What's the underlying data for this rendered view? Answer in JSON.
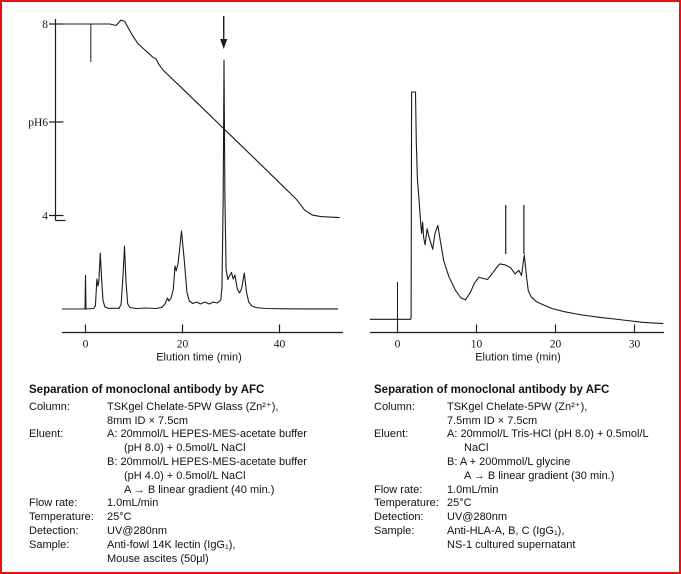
{
  "frame": {
    "border_color": "#e81010",
    "background": "#ffffff",
    "ink_color": "#1c1c1c"
  },
  "chart_data": [
    {
      "type": "line",
      "id": "left-chromatogram",
      "title": "",
      "xlabel": "Elution time (min)",
      "x_ticks": [
        0,
        20,
        40
      ],
      "x_range": [
        -4.8,
        52.5
      ],
      "grid": false,
      "ph_axis": {
        "range": [
          4,
          8
        ],
        "tick_labels": [
          {
            "ph": 8,
            "label": "8"
          },
          {
            "ph": 6,
            "label": "pH6"
          },
          {
            "ph": 4,
            "label": "4"
          }
        ]
      },
      "series": [
        {
          "name": "uv-absorbance",
          "unit": "relative(0-100)",
          "points": [
            [
              -4.8,
              0.2
            ],
            [
              -0.1,
              0.2
            ],
            [
              0,
              13.6
            ],
            [
              0.1,
              0.2
            ],
            [
              1.7,
              0.4
            ],
            [
              2.05,
              1.5
            ],
            [
              2.35,
              12.2
            ],
            [
              2.55,
              9.4
            ],
            [
              2.75,
              11
            ],
            [
              3.05,
              22.6
            ],
            [
              3.3,
              13
            ],
            [
              3.6,
              3.6
            ],
            [
              4,
              1
            ],
            [
              4.7,
              0.5
            ],
            [
              6.9,
              0.5
            ],
            [
              7.35,
              2
            ],
            [
              7.75,
              14
            ],
            [
              8.05,
              25.4
            ],
            [
              8.35,
              11
            ],
            [
              8.7,
              2.2
            ],
            [
              9.15,
              0.8
            ],
            [
              10.5,
              0.4
            ],
            [
              12.5,
              0.6
            ],
            [
              14.5,
              0.4
            ],
            [
              15.8,
              0.9
            ],
            [
              16.4,
              2.2
            ],
            [
              16.9,
              4.6
            ],
            [
              17.2,
              3.4
            ],
            [
              17.6,
              4.4
            ],
            [
              18.1,
              8
            ],
            [
              18.45,
              17.4
            ],
            [
              18.7,
              15.5
            ],
            [
              19.1,
              18.5
            ],
            [
              19.8,
              31.4
            ],
            [
              20.35,
              20
            ],
            [
              20.9,
              7
            ],
            [
              21.4,
              3.4
            ],
            [
              22.1,
              2.4
            ],
            [
              22.9,
              3
            ],
            [
              23.7,
              2.2
            ],
            [
              24.6,
              3
            ],
            [
              25.5,
              2.2
            ],
            [
              26.4,
              3
            ],
            [
              27.2,
              2.6
            ],
            [
              27.9,
              3.8
            ],
            [
              28.15,
              9
            ],
            [
              28.4,
              45
            ],
            [
              28.55,
              99.8
            ],
            [
              28.75,
              45
            ],
            [
              29,
              16
            ],
            [
              29.35,
              12
            ],
            [
              29.7,
              13.4
            ],
            [
              30.1,
              14.8
            ],
            [
              30.45,
              12.2
            ],
            [
              30.8,
              13.8
            ],
            [
              31.3,
              8.2
            ],
            [
              31.75,
              6.6
            ],
            [
              32.2,
              8.5
            ],
            [
              32.75,
              14.6
            ],
            [
              33.2,
              7
            ],
            [
              33.65,
              3
            ],
            [
              34.3,
              1.4
            ],
            [
              35.2,
              0.8
            ],
            [
              37,
              0.4
            ],
            [
              41,
              0.3
            ],
            [
              46,
              0.25
            ],
            [
              52,
              0.25
            ]
          ]
        },
        {
          "name": "ph-gradient",
          "unit": "pH",
          "points": [
            [
              -4.8,
              8
            ],
            [
              3.5,
              8
            ],
            [
              5,
              8
            ],
            [
              6.3,
              7.97
            ],
            [
              7.3,
              8.08
            ],
            [
              8.1,
              8.05
            ],
            [
              8.8,
              7.92
            ],
            [
              9.6,
              7.78
            ],
            [
              10.8,
              7.6
            ],
            [
              13.8,
              7.33
            ],
            [
              14.6,
              7.28
            ],
            [
              15.1,
              7.18
            ],
            [
              16,
              7.06
            ],
            [
              20,
              6.68
            ],
            [
              25,
              6.2
            ],
            [
              30,
              5.72
            ],
            [
              35,
              5.24
            ],
            [
              40,
              4.76
            ],
            [
              43.5,
              4.42
            ],
            [
              45.2,
              4.2
            ],
            [
              46.8,
              4.1
            ],
            [
              48.5,
              4.07
            ],
            [
              52.3,
              4.05
            ]
          ]
        }
      ],
      "annotations": {
        "arrow_t": 28.5,
        "injection_mark_t": 1.1
      }
    },
    {
      "type": "line",
      "id": "right-chromatogram",
      "title": "",
      "xlabel": "Elution time (min)",
      "x_ticks": [
        0,
        10,
        20,
        30
      ],
      "x_range": [
        -3.5,
        33.7
      ],
      "grid": false,
      "series": [
        {
          "name": "uv-absorbance",
          "unit": "relative(0-100)",
          "points": [
            [
              -3.45,
              0.3
            ],
            [
              1.65,
              0.3
            ],
            [
              1.72,
              0.8
            ],
            [
              1.78,
              100
            ],
            [
              2.28,
              100
            ],
            [
              2.38,
              78
            ],
            [
              2.52,
              62
            ],
            [
              2.72,
              53
            ],
            [
              2.92,
              43
            ],
            [
              3.05,
              38
            ],
            [
              3.18,
              43
            ],
            [
              3.32,
              36
            ],
            [
              3.5,
              33
            ],
            [
              3.75,
              40
            ],
            [
              3.95,
              37
            ],
            [
              4.15,
              34.5
            ],
            [
              4.45,
              31
            ],
            [
              4.75,
              38
            ],
            [
              5.1,
              41.5
            ],
            [
              5.45,
              34
            ],
            [
              5.85,
              26
            ],
            [
              6.5,
              19
            ],
            [
              7.3,
              13.2
            ],
            [
              8,
              9.8
            ],
            [
              8.6,
              8.8
            ],
            [
              9.2,
              12
            ],
            [
              9.75,
              16.2
            ],
            [
              10.3,
              18.8
            ],
            [
              10.85,
              18.2
            ],
            [
              11.4,
              17.8
            ],
            [
              12,
              20.5
            ],
            [
              12.55,
              23
            ],
            [
              12.95,
              24.6
            ],
            [
              13.6,
              24.2
            ],
            [
              14.3,
              23
            ],
            [
              14.9,
              20.2
            ],
            [
              15.35,
              21.8
            ],
            [
              15.7,
              19.5
            ],
            [
              16.05,
              28.5
            ],
            [
              16.3,
              20
            ],
            [
              16.55,
              13
            ],
            [
              16.9,
              10.2
            ],
            [
              17.6,
              8
            ],
            [
              18.5,
              6.6
            ],
            [
              19.6,
              5
            ],
            [
              21.2,
              3.6
            ],
            [
              23,
              2.4
            ],
            [
              25.5,
              1.2
            ],
            [
              28,
              0.2
            ],
            [
              31,
              -1
            ],
            [
              33.6,
              -1.6
            ]
          ]
        }
      ],
      "annotations": {
        "injection_mark_t": 0,
        "fraction_marker_t": [
          13.7,
          16.0
        ]
      }
    }
  ],
  "captions": [
    {
      "title": "Separation of monoclonal antibody by AFC",
      "rows": [
        {
          "label": "Column:",
          "lines": [
            {
              "text": "TSKgel Chelate-5PW Glass (Zn²⁺),",
              "indent": 0
            },
            {
              "text": "8mm ID × 7.5cm",
              "indent": 0
            }
          ]
        },
        {
          "label": "Eluent:",
          "lines": [
            {
              "text": "A: 20mmol/L HEPES-MES-acetate buffer",
              "indent": 0
            },
            {
              "text": "(pH 8.0) + 0.5mol/L NaCl",
              "indent": 1
            },
            {
              "text": "B: 20mmol/L HEPES-MES-acetate buffer",
              "indent": 0
            },
            {
              "text": "(pH 4.0) + 0.5mol/L NaCl",
              "indent": 1
            },
            {
              "text": "A → B linear gradient (40 min.)",
              "indent": 1
            }
          ]
        },
        {
          "label": "Flow rate:",
          "lines": [
            {
              "text": "1.0mL/min",
              "indent": 0
            }
          ]
        },
        {
          "label": "Temperature:",
          "lines": [
            {
              "text": "25°C",
              "indent": 0
            }
          ]
        },
        {
          "label": "Detection:",
          "lines": [
            {
              "text": "UV@280nm",
              "indent": 0
            }
          ]
        },
        {
          "label": "Sample:",
          "lines": [
            {
              "text": "Anti-fowl 14K lectin (IgG₁),",
              "indent": 0
            },
            {
              "text": "Mouse ascites (50µl)",
              "indent": 0
            }
          ]
        }
      ]
    },
    {
      "title": "Separation of monoclonal antibody by AFC",
      "rows": [
        {
          "label": "Column:",
          "lines": [
            {
              "text": "TSKgel Chelate-5PW (Zn²⁺),",
              "indent": 0
            },
            {
              "text": "7.5mm ID × 7.5cm",
              "indent": 0
            }
          ]
        },
        {
          "label": "Eluent:",
          "lines": [
            {
              "text": "A: 20mmol/L Tris-HCl (pH 8.0) + 0.5mol/L",
              "indent": 0
            },
            {
              "text": "NaCl",
              "indent": 1
            },
            {
              "text": "B: A + 200mmol/L glycine",
              "indent": 0
            },
            {
              "text": "A → B linear gradient (30 min.)",
              "indent": 1
            }
          ]
        },
        {
          "label": "Flow rate:",
          "lines": [
            {
              "text": "1.0mL/min",
              "indent": 0
            }
          ]
        },
        {
          "label": "Temperature:",
          "lines": [
            {
              "text": "25°C",
              "indent": 0
            }
          ]
        },
        {
          "label": "Detection:",
          "lines": [
            {
              "text": "UV@280nm",
              "indent": 0
            }
          ]
        },
        {
          "label": "Sample:",
          "lines": [
            {
              "text": "Anti-HLA-A, B, C (IgG₁),",
              "indent": 0
            },
            {
              "text": "NS-1 cultured supernatant",
              "indent": 0
            }
          ]
        }
      ]
    }
  ]
}
